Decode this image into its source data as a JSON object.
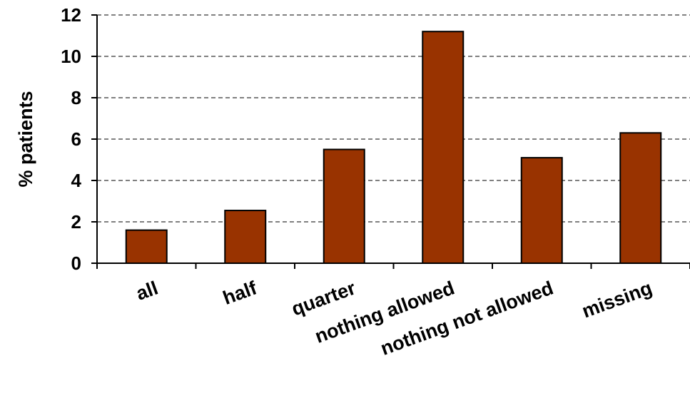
{
  "chart_data": {
    "type": "bar",
    "title": "",
    "xlabel": "",
    "ylabel": "% patients",
    "ylim": [
      0,
      12
    ],
    "yticks": [
      0,
      2,
      4,
      6,
      8,
      10,
      12
    ],
    "categories": [
      "all",
      "half",
      "quarter",
      "nothing allowed",
      "nothing not allowed",
      "missing"
    ],
    "values": [
      1.6,
      2.55,
      5.5,
      11.2,
      5.1,
      6.3
    ],
    "grid": "horizontal dashed",
    "legend": "none"
  },
  "colors": {
    "bar_fill": "#993300",
    "bar_stroke": "#000000",
    "axis": "#000000",
    "grid": "#000000"
  }
}
